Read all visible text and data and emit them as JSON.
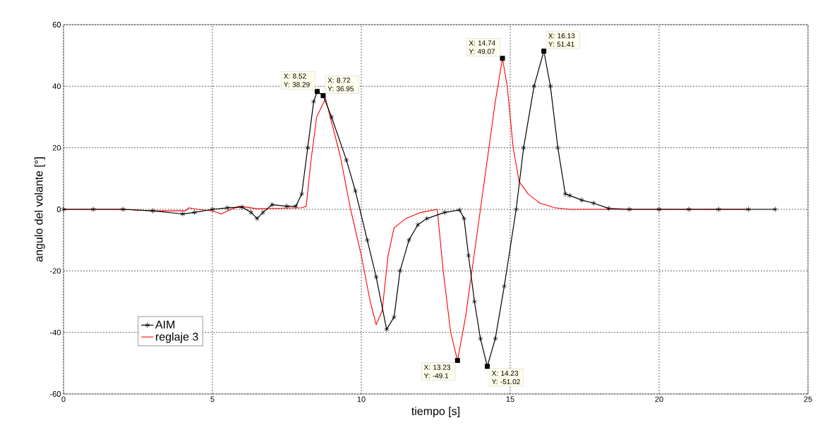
{
  "chart_data": {
    "type": "line",
    "xlabel": "tiempo [s]",
    "ylabel": "angulo del volante [°]",
    "xlim": [
      0,
      25
    ],
    "xticks": [
      0,
      5,
      10,
      15,
      20,
      25
    ],
    "ylim": [
      -60,
      60
    ],
    "yticks": [
      -60,
      -40,
      -20,
      0,
      20,
      40,
      60
    ],
    "grid": true,
    "legend": "bottom left",
    "line_style": "solid",
    "series": [
      {
        "name": "AIM",
        "color": "#000000",
        "marker": "cross",
        "x": [
          0,
          1,
          2,
          3,
          4,
          4.4,
          5,
          5.5,
          6,
          6.3,
          6.5,
          6.7,
          7,
          7.5,
          7.8,
          8.0,
          8.2,
          8.4,
          8.52,
          8.72,
          9.0,
          9.5,
          9.8,
          10.2,
          10.5,
          10.85,
          11.1,
          11.3,
          11.6,
          11.9,
          12.2,
          12.8,
          13.3,
          13.45,
          13.6,
          13.8,
          14.0,
          14.23,
          14.5,
          14.8,
          15.2,
          15.45,
          15.8,
          16.13,
          16.35,
          16.6,
          16.85,
          17.0,
          17.4,
          17.8,
          18.3,
          19,
          20,
          21,
          22,
          23,
          23.9
        ],
        "values": [
          0,
          0,
          0,
          -0.5,
          -1.5,
          -1,
          0,
          0.5,
          0.7,
          -1,
          -3,
          -1,
          1.5,
          1,
          1,
          5,
          20,
          35,
          38.29,
          36.95,
          30,
          16,
          6,
          -10,
          -22,
          -39,
          -35,
          -20,
          -10,
          -5,
          -3,
          -1,
          -0.2,
          -3,
          -15,
          -30,
          -42,
          -51.02,
          -42,
          -25,
          0,
          20,
          40,
          51.41,
          40,
          20,
          5,
          4.5,
          3,
          2,
          0.3,
          0,
          0,
          0,
          0,
          0,
          0
        ]
      },
      {
        "name": "reglaje 3",
        "color": "#ff0000",
        "marker": "none",
        "x": [
          0,
          2,
          3,
          4.1,
          4.2,
          4.5,
          5,
          5.3,
          5.5,
          5.9,
          6.5,
          7,
          8,
          8.15,
          8.3,
          8.5,
          8.65,
          8.8,
          9.3,
          9.64,
          10.0,
          10.3,
          10.5,
          10.7,
          10.9,
          11.1,
          11.5,
          12.0,
          12.55,
          12.75,
          13.0,
          13.23,
          13.5,
          14.0,
          14.5,
          14.74,
          14.9,
          15.1,
          15.3,
          15.6,
          16.0,
          16.5,
          17,
          18,
          20,
          23
        ],
        "values": [
          0,
          0,
          -0.5,
          -0.5,
          0.5,
          0,
          -0.5,
          -1.5,
          -0.5,
          1,
          0.2,
          0.3,
          0.5,
          1,
          15,
          30,
          null,
          36,
          17,
          0,
          -15,
          -30,
          -37.5,
          -33,
          -15,
          -6,
          -3,
          -1,
          0,
          -20,
          -40,
          -49.1,
          -35,
          0,
          35,
          49.07,
          40,
          20,
          9,
          5,
          2,
          0.5,
          0,
          0,
          0,
          0
        ]
      }
    ],
    "annotations": [
      {
        "text": "X: 8.52 Y: 38.29",
        "x": 8.52,
        "y": 38.29
      },
      {
        "text": "X: 8.72 Y: 36.95",
        "x": 8.72,
        "y": 36.95
      },
      {
        "text": "X: 14.74 Y: 49.07",
        "x": 14.74,
        "y": 49.07
      },
      {
        "text": "X: 16.13 Y: 51.41",
        "x": 16.13,
        "y": 51.41
      },
      {
        "text": "X: 13.23 Y: -49.1",
        "x": 13.23,
        "y": -49.1
      },
      {
        "text": "X: 14.23 Y: -51.02",
        "x": 14.23,
        "y": -51.02
      }
    ]
  }
}
